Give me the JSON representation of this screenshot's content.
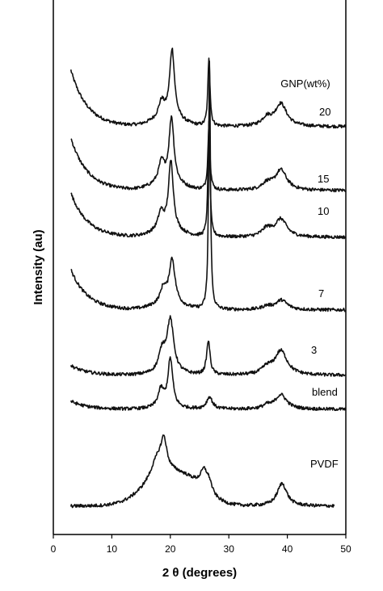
{
  "chart_data": {
    "type": "line",
    "title": "",
    "xlabel": "2 θ (degrees)",
    "ylabel": "Intensity (au)",
    "xlim": [
      0,
      50
    ],
    "xticks": [
      0,
      10,
      20,
      30,
      40,
      50
    ],
    "grid": false,
    "legend_title": "GNP(wt%)",
    "series": [
      {
        "name": "20",
        "x_range": [
          3,
          50
        ],
        "peaks": [
          {
            "x": 18.5,
            "h": 20,
            "w": 0.6
          },
          {
            "x": 20.3,
            "h": 85,
            "w": 0.5
          },
          {
            "x": 26.6,
            "h": 85,
            "w": 0.22
          },
          {
            "x": 36.5,
            "h": 10,
            "w": 1.0
          },
          {
            "x": 38.9,
            "h": 28,
            "w": 1.2
          }
        ],
        "decay": 70
      },
      {
        "name": "15",
        "x_range": [
          3,
          50
        ],
        "peaks": [
          {
            "x": 18.5,
            "h": 25,
            "w": 0.6
          },
          {
            "x": 20.2,
            "h": 80,
            "w": 0.5
          },
          {
            "x": 26.6,
            "h": 80,
            "w": 0.22
          },
          {
            "x": 36.5,
            "h": 8,
            "w": 1.0
          },
          {
            "x": 38.9,
            "h": 25,
            "w": 1.2
          }
        ],
        "decay": 65
      },
      {
        "name": "10",
        "x_range": [
          3,
          50
        ],
        "peaks": [
          {
            "x": 18.4,
            "h": 22,
            "w": 0.6
          },
          {
            "x": 20.1,
            "h": 85,
            "w": 0.5
          },
          {
            "x": 26.6,
            "h": 145,
            "w": 0.2
          },
          {
            "x": 36.5,
            "h": 10,
            "w": 1.0
          },
          {
            "x": 38.9,
            "h": 22,
            "w": 1.2
          }
        ],
        "decay": 55
      },
      {
        "name": "7",
        "x_range": [
          3,
          50
        ],
        "peaks": [
          {
            "x": 18.8,
            "h": 18,
            "w": 0.6
          },
          {
            "x": 20.3,
            "h": 55,
            "w": 0.6
          },
          {
            "x": 26.7,
            "h": 310,
            "w": 0.18
          },
          {
            "x": 36.5,
            "h": 4,
            "w": 1.0
          },
          {
            "x": 39.0,
            "h": 12,
            "w": 1.2
          }
        ],
        "decay": 50
      },
      {
        "name": "3",
        "x_range": [
          3,
          50
        ],
        "peaks": [
          {
            "x": 18.6,
            "h": 25,
            "w": 0.7
          },
          {
            "x": 20.0,
            "h": 65,
            "w": 0.7
          },
          {
            "x": 26.5,
            "h": 42,
            "w": 0.35
          },
          {
            "x": 36.5,
            "h": 8,
            "w": 1.0
          },
          {
            "x": 38.9,
            "h": 30,
            "w": 1.3
          }
        ],
        "decay": 12
      },
      {
        "name": "blend",
        "x_range": [
          3,
          50
        ],
        "peaks": [
          {
            "x": 18.4,
            "h": 22,
            "w": 0.6
          },
          {
            "x": 20.0,
            "h": 60,
            "w": 0.5
          },
          {
            "x": 26.7,
            "h": 15,
            "w": 0.6
          },
          {
            "x": 36.5,
            "h": 4,
            "w": 0.8
          },
          {
            "x": 38.9,
            "h": 18,
            "w": 1.2
          }
        ],
        "decay": 10
      },
      {
        "name": "PVDF",
        "x_range": [
          3,
          48
        ],
        "peaks": [
          {
            "x": 17.8,
            "h": 25,
            "w": 1.4
          },
          {
            "x": 18.9,
            "h": 35,
            "w": 0.6
          },
          {
            "x": 25.8,
            "h": 25,
            "w": 0.8
          },
          {
            "x": 26.7,
            "h": 10,
            "w": 0.5
          },
          {
            "x": 39.1,
            "h": 28,
            "w": 1.0
          }
        ],
        "decay": 0,
        "broad_amorphous": true
      }
    ]
  }
}
